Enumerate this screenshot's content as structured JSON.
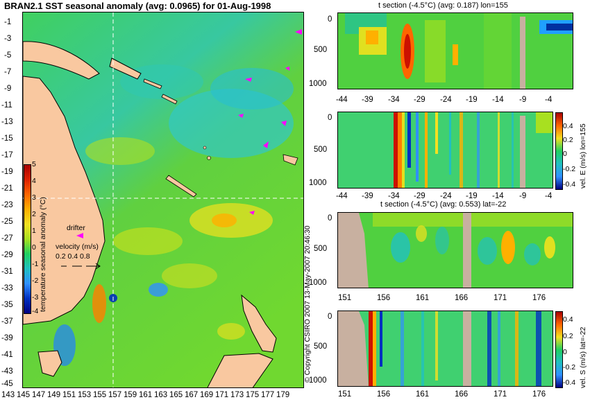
{
  "colors": {
    "land": "#f9c8a0",
    "section_land": "#c8b0a0",
    "drifter": "#ff00ff",
    "guide_line": "#ffffff"
  },
  "main_map": {
    "title": "BRAN2.1 SST seasonal anomaly (avg: 0.0965) for 01-Aug-1998",
    "lat_ticks": [
      "-1",
      "-3",
      "-5",
      "-7",
      "-9",
      "-11",
      "-13",
      "-15",
      "-17",
      "-19",
      "-21",
      "-23",
      "-25",
      "-27",
      "-29",
      "-31",
      "-33",
      "-35",
      "-37",
      "-39",
      "-41",
      "-43",
      "-45"
    ],
    "lon_ticks": [
      "143",
      "145",
      "147",
      "149",
      "151",
      "153",
      "155",
      "157",
      "159",
      "161",
      "163",
      "165",
      "167",
      "169",
      "171",
      "173",
      "175",
      "177",
      "179"
    ],
    "colorbar": {
      "label": "temperature seasonal anomaly (°C)",
      "ticks": [
        "5",
        "4",
        "3",
        "2",
        "1",
        "0",
        "-1",
        "-2",
        "-3",
        "-4"
      ],
      "colors": [
        "#aa0000",
        "#dd2200",
        "#ff6600",
        "#ffb000",
        "#f4e020",
        "#a8e020",
        "#20d060",
        "#20c0c0",
        "#3090ff",
        "#0030c0",
        "#000080"
      ]
    },
    "legend": {
      "drifter_label": "drifter",
      "velocity_title": "velocity (m/s)",
      "velocity_values": "0.2 0.4 0.8"
    },
    "copyright": "© Copyright CSIRO 2007 13-May-2007 20:46:30"
  },
  "chart_data": [
    {
      "type": "heatmap",
      "title": "t section (-4.5°C) (avg: 0.187) lon=155",
      "x_ticks": [
        "-44",
        "-39",
        "-34",
        "-29",
        "-24",
        "-19",
        "-14",
        "-9",
        "-4"
      ],
      "y_ticks": [
        "0",
        "500",
        "1000"
      ],
      "xlim": [
        -45,
        0
      ],
      "ylim": [
        1050,
        0
      ]
    },
    {
      "type": "heatmap",
      "title": "",
      "x_ticks": [
        "-44",
        "-39",
        "-34",
        "-29",
        "-24",
        "-19",
        "-14",
        "-9",
        "-4"
      ],
      "y_ticks": [
        "0",
        "500",
        "1000"
      ],
      "colorbar_ticks": [
        "0.4",
        "0.2",
        "0",
        "-0.2",
        "-0.4"
      ],
      "colorbar_label": "vel. E (m/s) lon=155"
    },
    {
      "type": "heatmap",
      "title": "t section (-4.5°C) (avg: 0.553) lat=-22",
      "x_ticks": [
        "151",
        "156",
        "161",
        "166",
        "171",
        "176"
      ],
      "y_ticks": [
        "0",
        "500",
        "1000"
      ],
      "xlim": [
        150,
        180
      ],
      "ylim": [
        1050,
        0
      ]
    },
    {
      "type": "heatmap",
      "title": "",
      "x_ticks": [
        "151",
        "156",
        "161",
        "166",
        "171",
        "176"
      ],
      "y_ticks": [
        "0",
        "500",
        "1000"
      ],
      "colorbar_ticks": [
        "0.4",
        "0.2",
        "0",
        "-0.2",
        "-0.4"
      ],
      "colorbar_label": "vel. S (m/s) lat=-22"
    }
  ]
}
